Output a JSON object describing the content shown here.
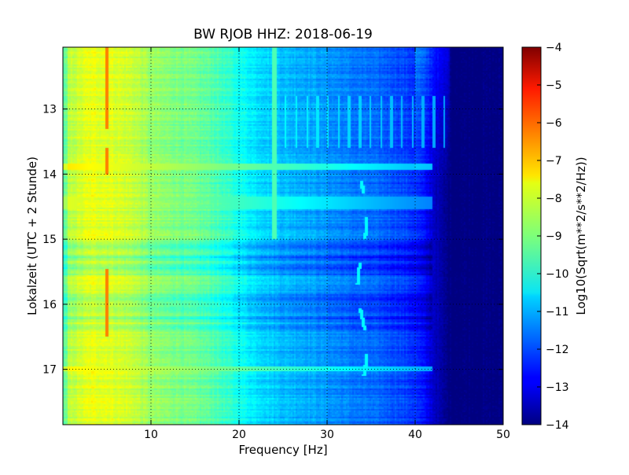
{
  "chart_data": {
    "type": "heatmap",
    "title": "BW RJOB HHZ: 2018-06-19",
    "xlabel": "Frequency [Hz]",
    "ylabel": "Lokalzeit (UTC + 2 Stunde)",
    "xlim": [
      0,
      50
    ],
    "ylim": [
      12.05,
      17.85
    ],
    "y_inverted": true,
    "x_ticks": [
      10,
      20,
      30,
      40,
      50
    ],
    "x_tick_labels": [
      "10",
      "20",
      "30",
      "40",
      "50"
    ],
    "y_ticks": [
      13,
      14,
      15,
      16,
      17
    ],
    "y_tick_labels": [
      "13",
      "14",
      "15",
      "16",
      "17"
    ],
    "grid": true,
    "colormap": "jet",
    "colorbar": {
      "label": "Log10(Sqrt(m**2/s**2/Hz))",
      "range": [
        -14,
        -4
      ],
      "ticks": [
        -4,
        -5,
        -6,
        -7,
        -8,
        -9,
        -10,
        -11,
        -12,
        -13,
        -14
      ],
      "tick_labels": [
        "−4",
        "−5",
        "−6",
        "−7",
        "−8",
        "−9",
        "−10",
        "−11",
        "−12",
        "−13",
        "−14"
      ]
    },
    "background_spectrum": {
      "frequency_hz": [
        0,
        1,
        3,
        5,
        8,
        10,
        13,
        17,
        20,
        22,
        25,
        28,
        30,
        33,
        36,
        38,
        40,
        41,
        42,
        43,
        44,
        46,
        50
      ],
      "level": [
        -8.8,
        -8.4,
        -8.0,
        -8.0,
        -8.3,
        -8.8,
        -9.0,
        -9.4,
        -10.1,
        -10.5,
        -10.9,
        -11.1,
        -11.3,
        -11.6,
        -11.8,
        -12.0,
        -12.3,
        -12.7,
        -13.2,
        -13.7,
        -14,
        -14,
        -14
      ]
    },
    "features": {
      "tone_5hz": {
        "frequency_hz": 5,
        "level": -6.5,
        "time_ranges": [
          [
            12.05,
            13.3
          ],
          [
            13.6,
            14.0
          ],
          [
            15.45,
            16.5
          ]
        ]
      },
      "tone_24hz": {
        "frequency_hz": 24,
        "level": -9.5,
        "time_range": [
          12.05,
          15.0
        ]
      },
      "harmonic_comb": {
        "frequency_range_hz": [
          24,
          44
        ],
        "spacing_hz": 1.2,
        "level": -10.2,
        "time_range": [
          12.8,
          13.6
        ]
      },
      "bright_bands": [
        {
          "time": 13.88,
          "level": -7.5,
          "width_h": 0.05
        },
        {
          "time": 14.45,
          "level": -8.0,
          "width_h": 0.1
        },
        {
          "time": 17.0,
          "level": -7.6,
          "width_h": 0.04
        }
      ],
      "dark_bands": [
        {
          "time": 15.3,
          "width_h": 0.25,
          "delta": -0.8
        },
        {
          "time": 16.1,
          "width_h": 0.3,
          "delta": -0.6
        }
      ],
      "wandering_line": {
        "frequency_hz": 34,
        "level": -10.3,
        "time_range": [
          14.1,
          17.4
        ]
      }
    }
  }
}
